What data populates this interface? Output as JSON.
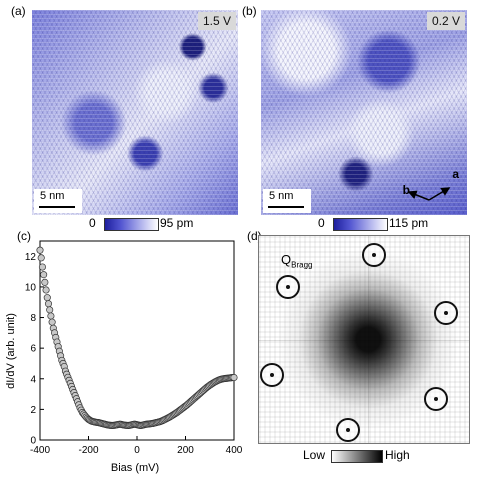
{
  "panels": {
    "a": {
      "label": "(a)",
      "voltage": "1.5 V",
      "scale_bar": "5 nm",
      "colorbar": {
        "min": "0",
        "max": "95 pm"
      }
    },
    "b": {
      "label": "(b)",
      "voltage": "0.2 V",
      "scale_bar": "5 nm",
      "lattice_vector_a": "a",
      "lattice_vector_b": "b",
      "colorbar": {
        "min": "0",
        "max": "115 pm"
      }
    },
    "c": {
      "label": "(c)"
    },
    "d": {
      "label": "(d)",
      "peak_label_main": "Q",
      "peak_label_sub": "Bragg",
      "colorbar": {
        "low": "Low",
        "high": "High"
      }
    }
  },
  "colors": {
    "stm_low": "#1e1f9e",
    "stm_high": "#ffffff",
    "spectrum_marker_fill": "#c8c8c8",
    "spectrum_marker_edge": "#333333",
    "fft_low": "#ffffff",
    "fft_high": "#000000"
  },
  "chart_data": {
    "type": "scatter",
    "xlabel": "Bias (mV)",
    "ylabel": "dI/dV (arb. unit)",
    "xlim": [
      -400,
      400
    ],
    "ylim": [
      0,
      13
    ],
    "xticks": [
      -400,
      -200,
      0,
      200,
      400
    ],
    "yticks": [
      0,
      2,
      4,
      6,
      8,
      10,
      12
    ],
    "grid": false,
    "x": [
      -400,
      -395,
      -390,
      -385,
      -380,
      -375,
      -370,
      -365,
      -360,
      -355,
      -350,
      -345,
      -340,
      -335,
      -330,
      -325,
      -320,
      -315,
      -310,
      -305,
      -300,
      -295,
      -290,
      -285,
      -280,
      -275,
      -270,
      -265,
      -260,
      -255,
      -250,
      -245,
      -240,
      -235,
      -230,
      -225,
      -220,
      -215,
      -210,
      -205,
      -200,
      -195,
      -190,
      -185,
      -180,
      -175,
      -170,
      -165,
      -160,
      -155,
      -150,
      -145,
      -140,
      -135,
      -130,
      -125,
      -120,
      -115,
      -110,
      -105,
      -100,
      -95,
      -90,
      -85,
      -80,
      -75,
      -70,
      -65,
      -60,
      -55,
      -50,
      -45,
      -40,
      -35,
      -30,
      -25,
      -20,
      -15,
      -10,
      -5,
      0,
      5,
      10,
      15,
      20,
      25,
      30,
      35,
      40,
      45,
      50,
      55,
      60,
      65,
      70,
      75,
      80,
      85,
      90,
      95,
      100,
      105,
      110,
      115,
      120,
      125,
      130,
      135,
      140,
      145,
      150,
      155,
      160,
      165,
      170,
      175,
      180,
      185,
      190,
      195,
      200,
      205,
      210,
      215,
      220,
      225,
      230,
      235,
      240,
      245,
      250,
      255,
      260,
      265,
      270,
      275,
      280,
      285,
      290,
      295,
      300,
      305,
      310,
      315,
      320,
      325,
      330,
      335,
      340,
      345,
      350,
      355,
      360,
      365,
      370,
      375,
      380,
      385,
      390,
      395,
      400
    ],
    "y": [
      12.4,
      11.9,
      11.3,
      10.8,
      10.3,
      9.8,
      9.3,
      8.9,
      8.5,
      8.1,
      7.7,
      7.3,
      7.0,
      6.7,
      6.4,
      6.1,
      5.8,
      5.5,
      5.2,
      5.0,
      4.8,
      4.5,
      4.3,
      4.1,
      3.9,
      3.7,
      3.5,
      3.3,
      3.1,
      2.9,
      2.7,
      2.5,
      2.3,
      2.1,
      1.95,
      1.8,
      1.7,
      1.6,
      1.5,
      1.42,
      1.35,
      1.3,
      1.25,
      1.22,
      1.2,
      1.18,
      1.16,
      1.15,
      1.14,
      1.12,
      1.1,
      1.08,
      1.06,
      1.04,
      1.02,
      1.0,
      0.98,
      0.97,
      0.96,
      0.95,
      0.95,
      0.96,
      0.97,
      0.99,
      1.0,
      1.02,
      1.03,
      1.02,
      1.0,
      0.98,
      0.97,
      0.96,
      0.95,
      0.95,
      0.96,
      0.98,
      1.0,
      1.02,
      1.03,
      1.02,
      1.0,
      0.98,
      0.96,
      0.95,
      0.96,
      0.98,
      1.0,
      1.02,
      1.03,
      1.04,
      1.05,
      1.06,
      1.07,
      1.08,
      1.1,
      1.12,
      1.14,
      1.16,
      1.18,
      1.2,
      1.23,
      1.26,
      1.3,
      1.34,
      1.38,
      1.42,
      1.46,
      1.5,
      1.55,
      1.6,
      1.65,
      1.7,
      1.75,
      1.8,
      1.86,
      1.92,
      1.98,
      2.04,
      2.1,
      2.16,
      2.22,
      2.28,
      2.35,
      2.42,
      2.49,
      2.56,
      2.63,
      2.7,
      2.77,
      2.84,
      2.91,
      2.98,
      3.05,
      3.12,
      3.19,
      3.26,
      3.33,
      3.4,
      3.46,
      3.52,
      3.58,
      3.63,
      3.68,
      3.73,
      3.78,
      3.82,
      3.86,
      3.9,
      3.93,
      3.96,
      3.98,
      4.0,
      4.01,
      4.02,
      4.03,
      4.04,
      4.05,
      4.06,
      4.07,
      4.08,
      4.08
    ]
  }
}
